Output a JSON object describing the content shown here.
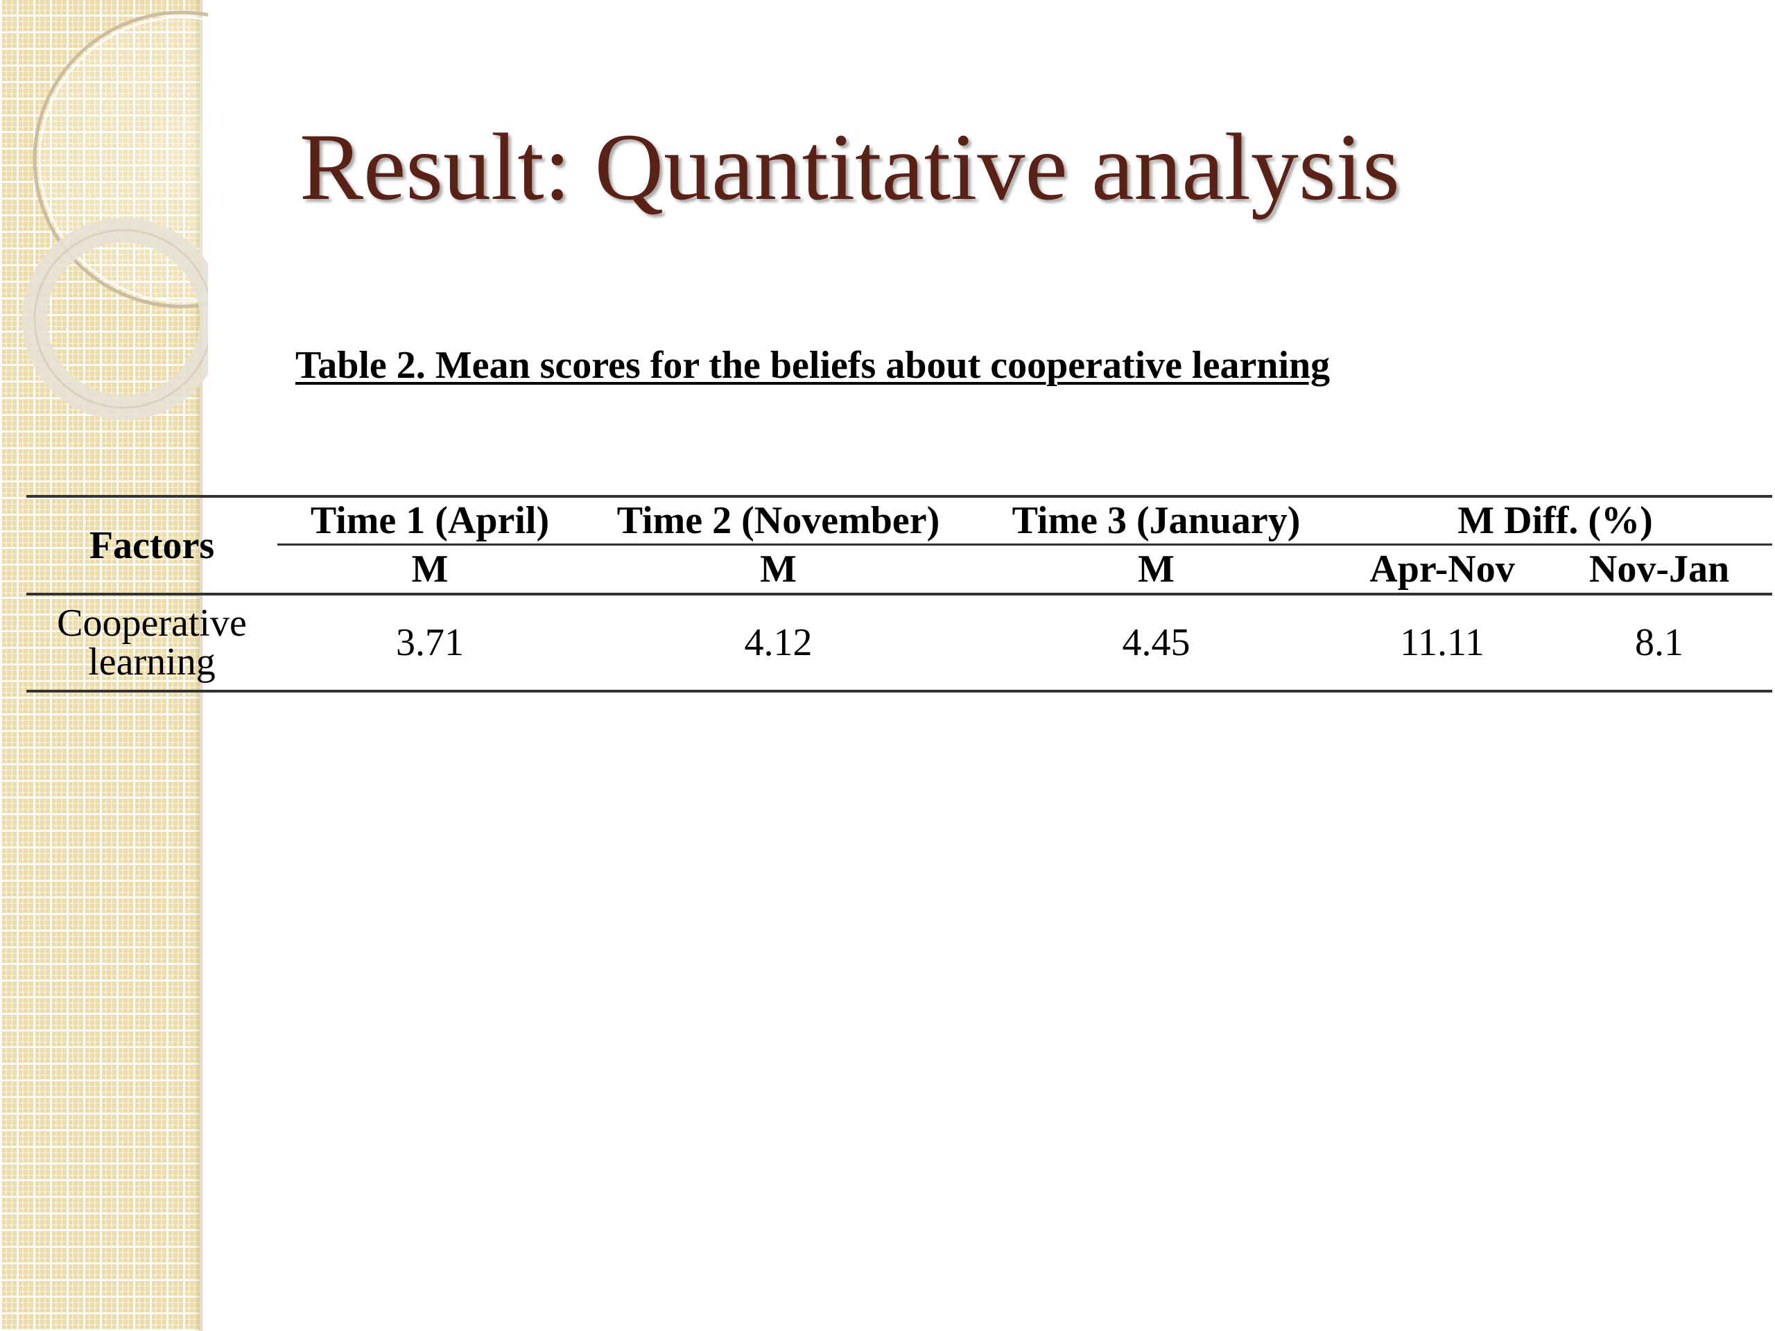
{
  "slide": {
    "title": "Result: Quantitative analysis",
    "caption": "Table 2. Mean scores for the beliefs  about cooperative learning"
  },
  "table": {
    "header": {
      "factors": "Factors",
      "time1": "Time 1 (April)",
      "time2": "Time 2 (November)",
      "time3": "Time 3 (January)",
      "mdiff": "M Diff. (%)",
      "m1": "M",
      "m2": "M",
      "m3": "M",
      "apr_nov": "Apr-Nov",
      "nov_jan": "Nov-Jan"
    },
    "rows": [
      {
        "factor_line1": "Cooperative",
        "factor_line2": "learning",
        "time1": "3.71",
        "time2": "4.12",
        "time3": "4.45",
        "apr_nov": "11.11",
        "nov_jan": "8.1"
      }
    ]
  },
  "colors": {
    "title": "#5a2116",
    "sidebar": "#eddca8",
    "rule": "#333333"
  }
}
